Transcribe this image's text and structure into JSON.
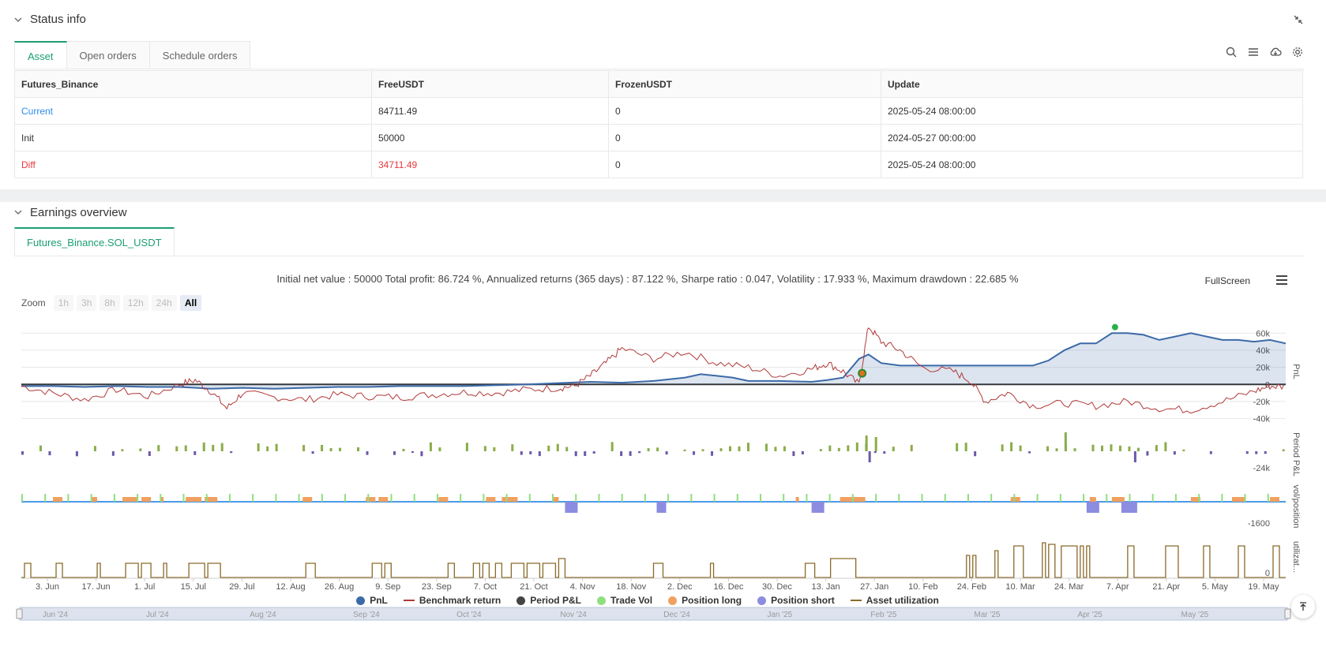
{
  "status": {
    "title": "Status info",
    "tabs": [
      "Asset",
      "Open orders",
      "Schedule orders"
    ],
    "table": {
      "headers": [
        "Futures_Binance",
        "FreeUSDT",
        "FrozenUSDT",
        "Update"
      ],
      "rows": [
        {
          "label": "Current",
          "free": "84711.49",
          "frozen": "0",
          "update": "2025-05-24 08:00:00"
        },
        {
          "label": "Init",
          "free": "50000",
          "frozen": "0",
          "update": "2024-05-27 00:00:00"
        },
        {
          "label": "Diff",
          "free": "34711.49",
          "frozen": "0",
          "update": "2025-05-24 08:00:00"
        }
      ]
    }
  },
  "earnings": {
    "title": "Earnings overview",
    "tab": "Futures_Binance.SOL_USDT",
    "summary": "Initial net value : 50000 Total profit: 86.724 %, Annualized returns (365 days) : 87.122 %, Sharpe ratio : 0.047, Volatility : 17.933 %, Maximum drawdown : 22.685 %",
    "fullscreen": "FullScreen",
    "zoom_label": "Zoom",
    "zoom_options": [
      "1h",
      "3h",
      "8h",
      "12h",
      "24h",
      "All"
    ],
    "legend": [
      "PnL",
      "Benchmark return",
      "Period P&L",
      "Trade Vol",
      "Position long",
      "Position short",
      "Asset utilization"
    ]
  },
  "colors": {
    "accent": "#1a9e72",
    "pnl": "#3c6aa8",
    "benchmark": "#b03a3a",
    "period": "#444444",
    "trade_vol": "#8fe07c",
    "position_long": "#f0a060",
    "position_short": "#8c8ce0",
    "utilization": "#8a6a2a"
  },
  "chart_data": {
    "type": "line",
    "x_ticks": [
      "3. Jun",
      "17. Jun",
      "1. Jul",
      "15. Jul",
      "29. Jul",
      "12. Aug",
      "26. Aug",
      "9. Sep",
      "23. Sep",
      "7. Oct",
      "21. Oct",
      "4. Nov",
      "18. Nov",
      "2. Dec",
      "16. Dec",
      "30. Dec",
      "13. Jan",
      "27. Jan",
      "10. Feb",
      "24. Feb",
      "10. Mar",
      "24. Mar",
      "7. Apr",
      "21. Apr",
      "5. May",
      "19. May"
    ],
    "navigator_ticks": [
      "Jun '24",
      "Jul '24",
      "Aug '24",
      "Sep '24",
      "Oct '24",
      "Nov '24",
      "Dec '24",
      "Jan '25",
      "Feb '25",
      "Mar '25",
      "Apr '25",
      "May '25"
    ],
    "pnl_axis": {
      "label": "PnL",
      "ticks": [
        "60k",
        "40k",
        "20k",
        "0",
        "-20k",
        "-40k"
      ],
      "ylim": [
        -45000,
        75000
      ]
    },
    "period_axis": {
      "label": "Period P&L",
      "ticks": [
        "-24k"
      ]
    },
    "vol_axis": {
      "label": "vol/position",
      "ticks": [
        "-1600"
      ]
    },
    "util_axis": {
      "label": "utilizat...",
      "ticks": [
        "0"
      ]
    },
    "pnl_series": [
      [
        0,
        -2000
      ],
      [
        10,
        -2000
      ],
      [
        20,
        -3000
      ],
      [
        30,
        -2000
      ],
      [
        40,
        -3000
      ],
      [
        50,
        -3000
      ],
      [
        60,
        -5000
      ],
      [
        70,
        -4000
      ],
      [
        80,
        -5000
      ],
      [
        90,
        -4000
      ],
      [
        100,
        -3000
      ],
      [
        110,
        -3000
      ],
      [
        120,
        -2000
      ],
      [
        130,
        -2000
      ],
      [
        140,
        -2000
      ],
      [
        150,
        -1000
      ],
      [
        160,
        0
      ],
      [
        170,
        1500
      ],
      [
        180,
        3000
      ],
      [
        190,
        2000
      ],
      [
        200,
        4000
      ],
      [
        210,
        8000
      ],
      [
        215,
        12000
      ],
      [
        220,
        10000
      ],
      [
        225,
        8000
      ],
      [
        230,
        4000
      ],
      [
        240,
        4000
      ],
      [
        250,
        3000
      ],
      [
        255,
        5000
      ],
      [
        260,
        8000
      ],
      [
        265,
        30000
      ],
      [
        268,
        35000
      ],
      [
        272,
        25000
      ],
      [
        278,
        22000
      ],
      [
        285,
        22000
      ],
      [
        300,
        22000
      ],
      [
        310,
        22000
      ],
      [
        320,
        22000
      ],
      [
        325,
        28000
      ],
      [
        330,
        40000
      ],
      [
        335,
        48000
      ],
      [
        340,
        48000
      ],
      [
        345,
        60000
      ],
      [
        350,
        60000
      ],
      [
        355,
        58000
      ],
      [
        360,
        52000
      ],
      [
        365,
        56000
      ],
      [
        370,
        60000
      ],
      [
        375,
        56000
      ],
      [
        380,
        52000
      ],
      [
        385,
        52000
      ],
      [
        390,
        50000
      ],
      [
        395,
        52000
      ],
      [
        400,
        48000
      ]
    ],
    "benchmark_series": [
      [
        0,
        -2000
      ],
      [
        10,
        -10000
      ],
      [
        20,
        -18000
      ],
      [
        30,
        -6000
      ],
      [
        40,
        -14000
      ],
      [
        50,
        0
      ],
      [
        55,
        5000
      ],
      [
        60,
        -8000
      ],
      [
        65,
        -28000
      ],
      [
        70,
        -10000
      ],
      [
        80,
        -15000
      ],
      [
        90,
        -18000
      ],
      [
        100,
        -12000
      ],
      [
        110,
        -14000
      ],
      [
        120,
        -15000
      ],
      [
        130,
        -12000
      ],
      [
        140,
        -9000
      ],
      [
        150,
        -10000
      ],
      [
        160,
        -6000
      ],
      [
        170,
        -4000
      ],
      [
        175,
        -2000
      ],
      [
        180,
        10000
      ],
      [
        185,
        25000
      ],
      [
        190,
        42000
      ],
      [
        200,
        30000
      ],
      [
        210,
        38000
      ],
      [
        220,
        25000
      ],
      [
        230,
        20000
      ],
      [
        240,
        10000
      ],
      [
        250,
        18000
      ],
      [
        255,
        25000
      ],
      [
        260,
        15000
      ],
      [
        265,
        0
      ],
      [
        268,
        68000
      ],
      [
        272,
        50000
      ],
      [
        278,
        40000
      ],
      [
        285,
        20000
      ],
      [
        295,
        15000
      ],
      [
        300,
        5000
      ],
      [
        305,
        -20000
      ],
      [
        312,
        -10000
      ],
      [
        320,
        -25000
      ],
      [
        330,
        -22000
      ],
      [
        340,
        -25000
      ],
      [
        350,
        -20000
      ],
      [
        360,
        -28000
      ],
      [
        370,
        -30000
      ],
      [
        380,
        -20000
      ],
      [
        390,
        -8000
      ],
      [
        395,
        -2000
      ],
      [
        400,
        -3000
      ]
    ]
  }
}
